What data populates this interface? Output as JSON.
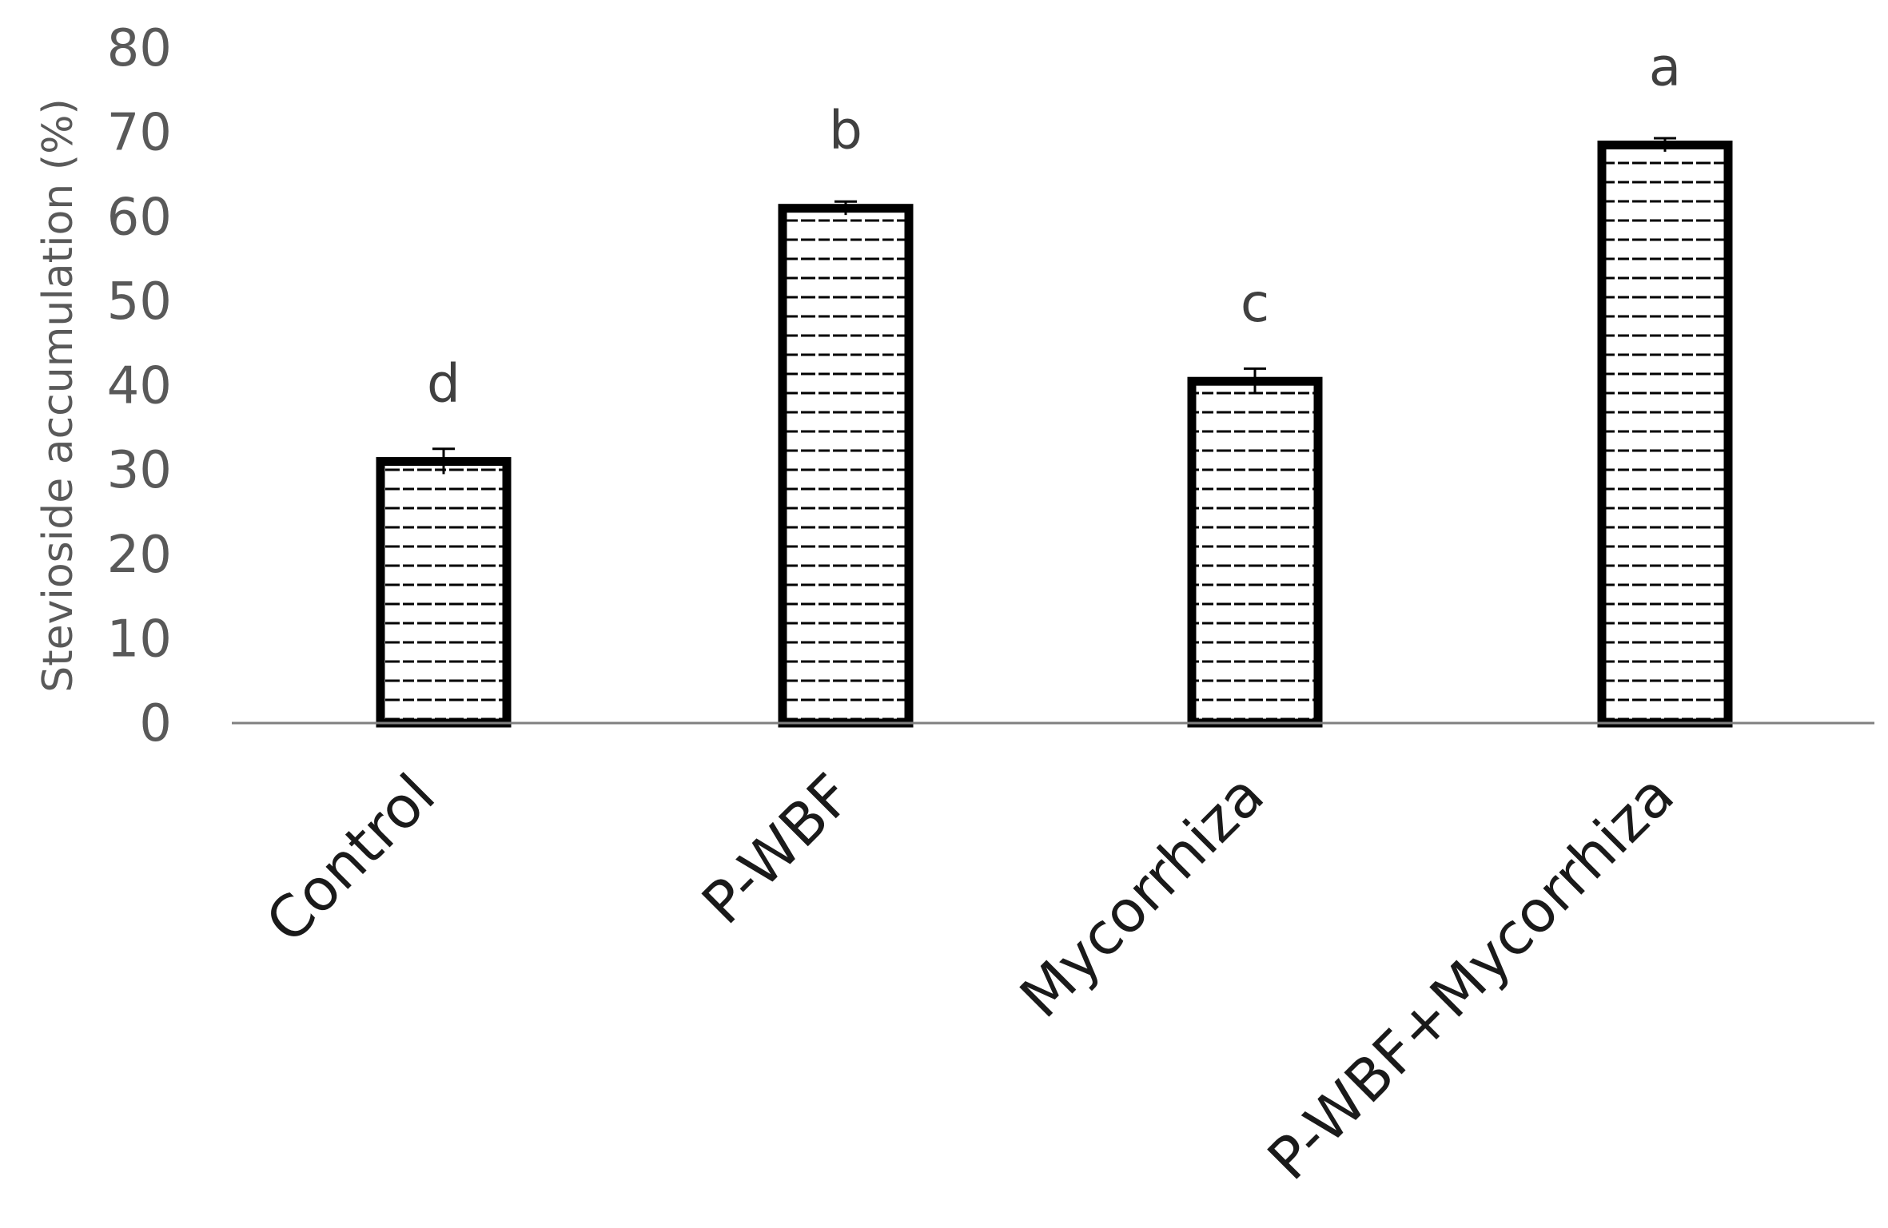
{
  "chart_data": {
    "type": "bar",
    "categories": [
      "Control",
      "P-WBF",
      "Mycorrhiza",
      "P-WBF+Mycorrhiza"
    ],
    "values": [
      31,
      61,
      40.5,
      68.5
    ],
    "error": [
      1.5,
      0.8,
      1.5,
      0.8
    ],
    "significance_letters": [
      "d",
      "b",
      "c",
      "a"
    ],
    "title": "",
    "xlabel": "",
    "ylabel": "Stevioside accumulation (%)",
    "ylim": [
      0,
      80
    ],
    "yticks": [
      0,
      10,
      20,
      30,
      40,
      50,
      60,
      70,
      80
    ],
    "grid": false,
    "legend": "none",
    "bar_fill_pattern": "dashed-horizontal",
    "colors": {
      "bar_outline": "#000000",
      "bar_fill": "#ffffff",
      "pattern": "#000000",
      "axis_line": "#808080",
      "tick_text": "#595959",
      "category_text": "#1a1a1a",
      "letter_text": "#404040"
    }
  }
}
